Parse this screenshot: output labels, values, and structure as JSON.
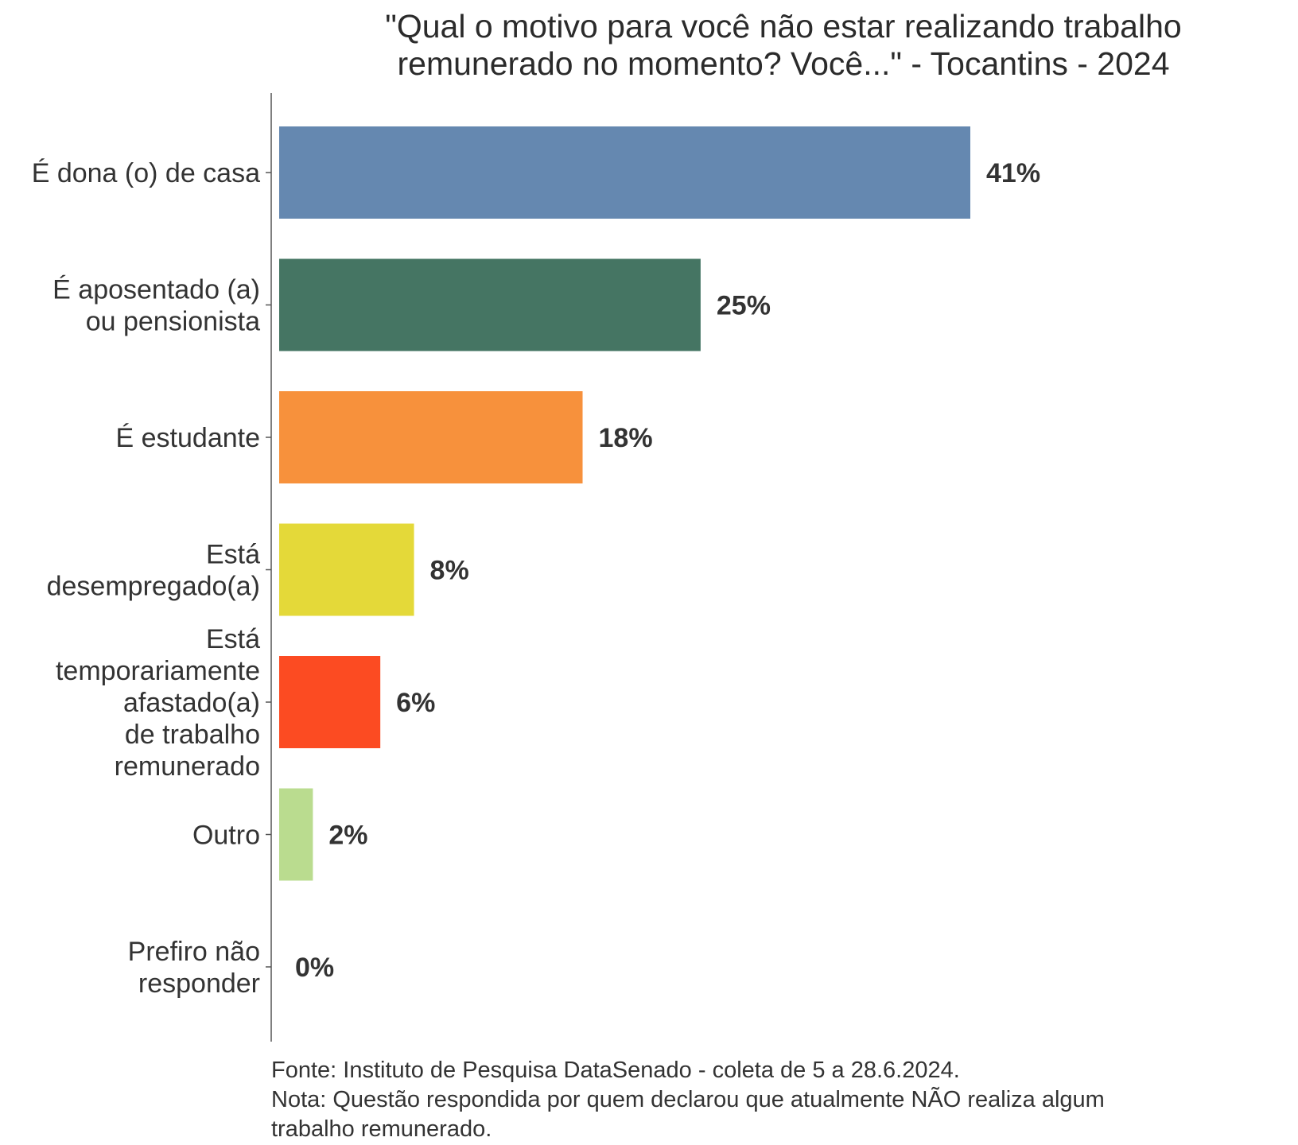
{
  "chart_data": {
    "type": "bar",
    "orientation": "horizontal",
    "title_lines": [
      "\"Qual o motivo para você não estar realizando trabalho",
      "remunerado no momento? Você...\" - Tocantins - 2024"
    ],
    "categories": [
      [
        "É dona (o) de casa"
      ],
      [
        "É aposentado (a)",
        "ou pensionista"
      ],
      [
        "É estudante"
      ],
      [
        "Está",
        "desempregado(a)"
      ],
      [
        "Está",
        "temporariamente",
        "afastado(a)",
        "de trabalho",
        "remunerado"
      ],
      [
        "Outro"
      ],
      [
        "Prefiro não",
        "responder"
      ]
    ],
    "values": [
      41,
      25,
      18,
      8,
      6,
      2,
      0
    ],
    "value_labels": [
      "41%",
      "25%",
      "18%",
      "8%",
      "6%",
      "2%",
      "0%"
    ],
    "colors": [
      "#6588b0",
      "#457563",
      "#f7913c",
      "#e4d939",
      "#fc4b22",
      "#badc8f",
      "#cccccc"
    ],
    "xlim": [
      0,
      41
    ],
    "grid": false,
    "legend": "none"
  },
  "footer": {
    "source": "Fonte: Instituto de Pesquisa DataSenado - coleta de 5 a 28.6.2024.",
    "note_line1": "Nota: Questão respondida por quem declarou que atualmente NÃO realiza algum",
    "note_line2": "trabalho remunerado."
  }
}
